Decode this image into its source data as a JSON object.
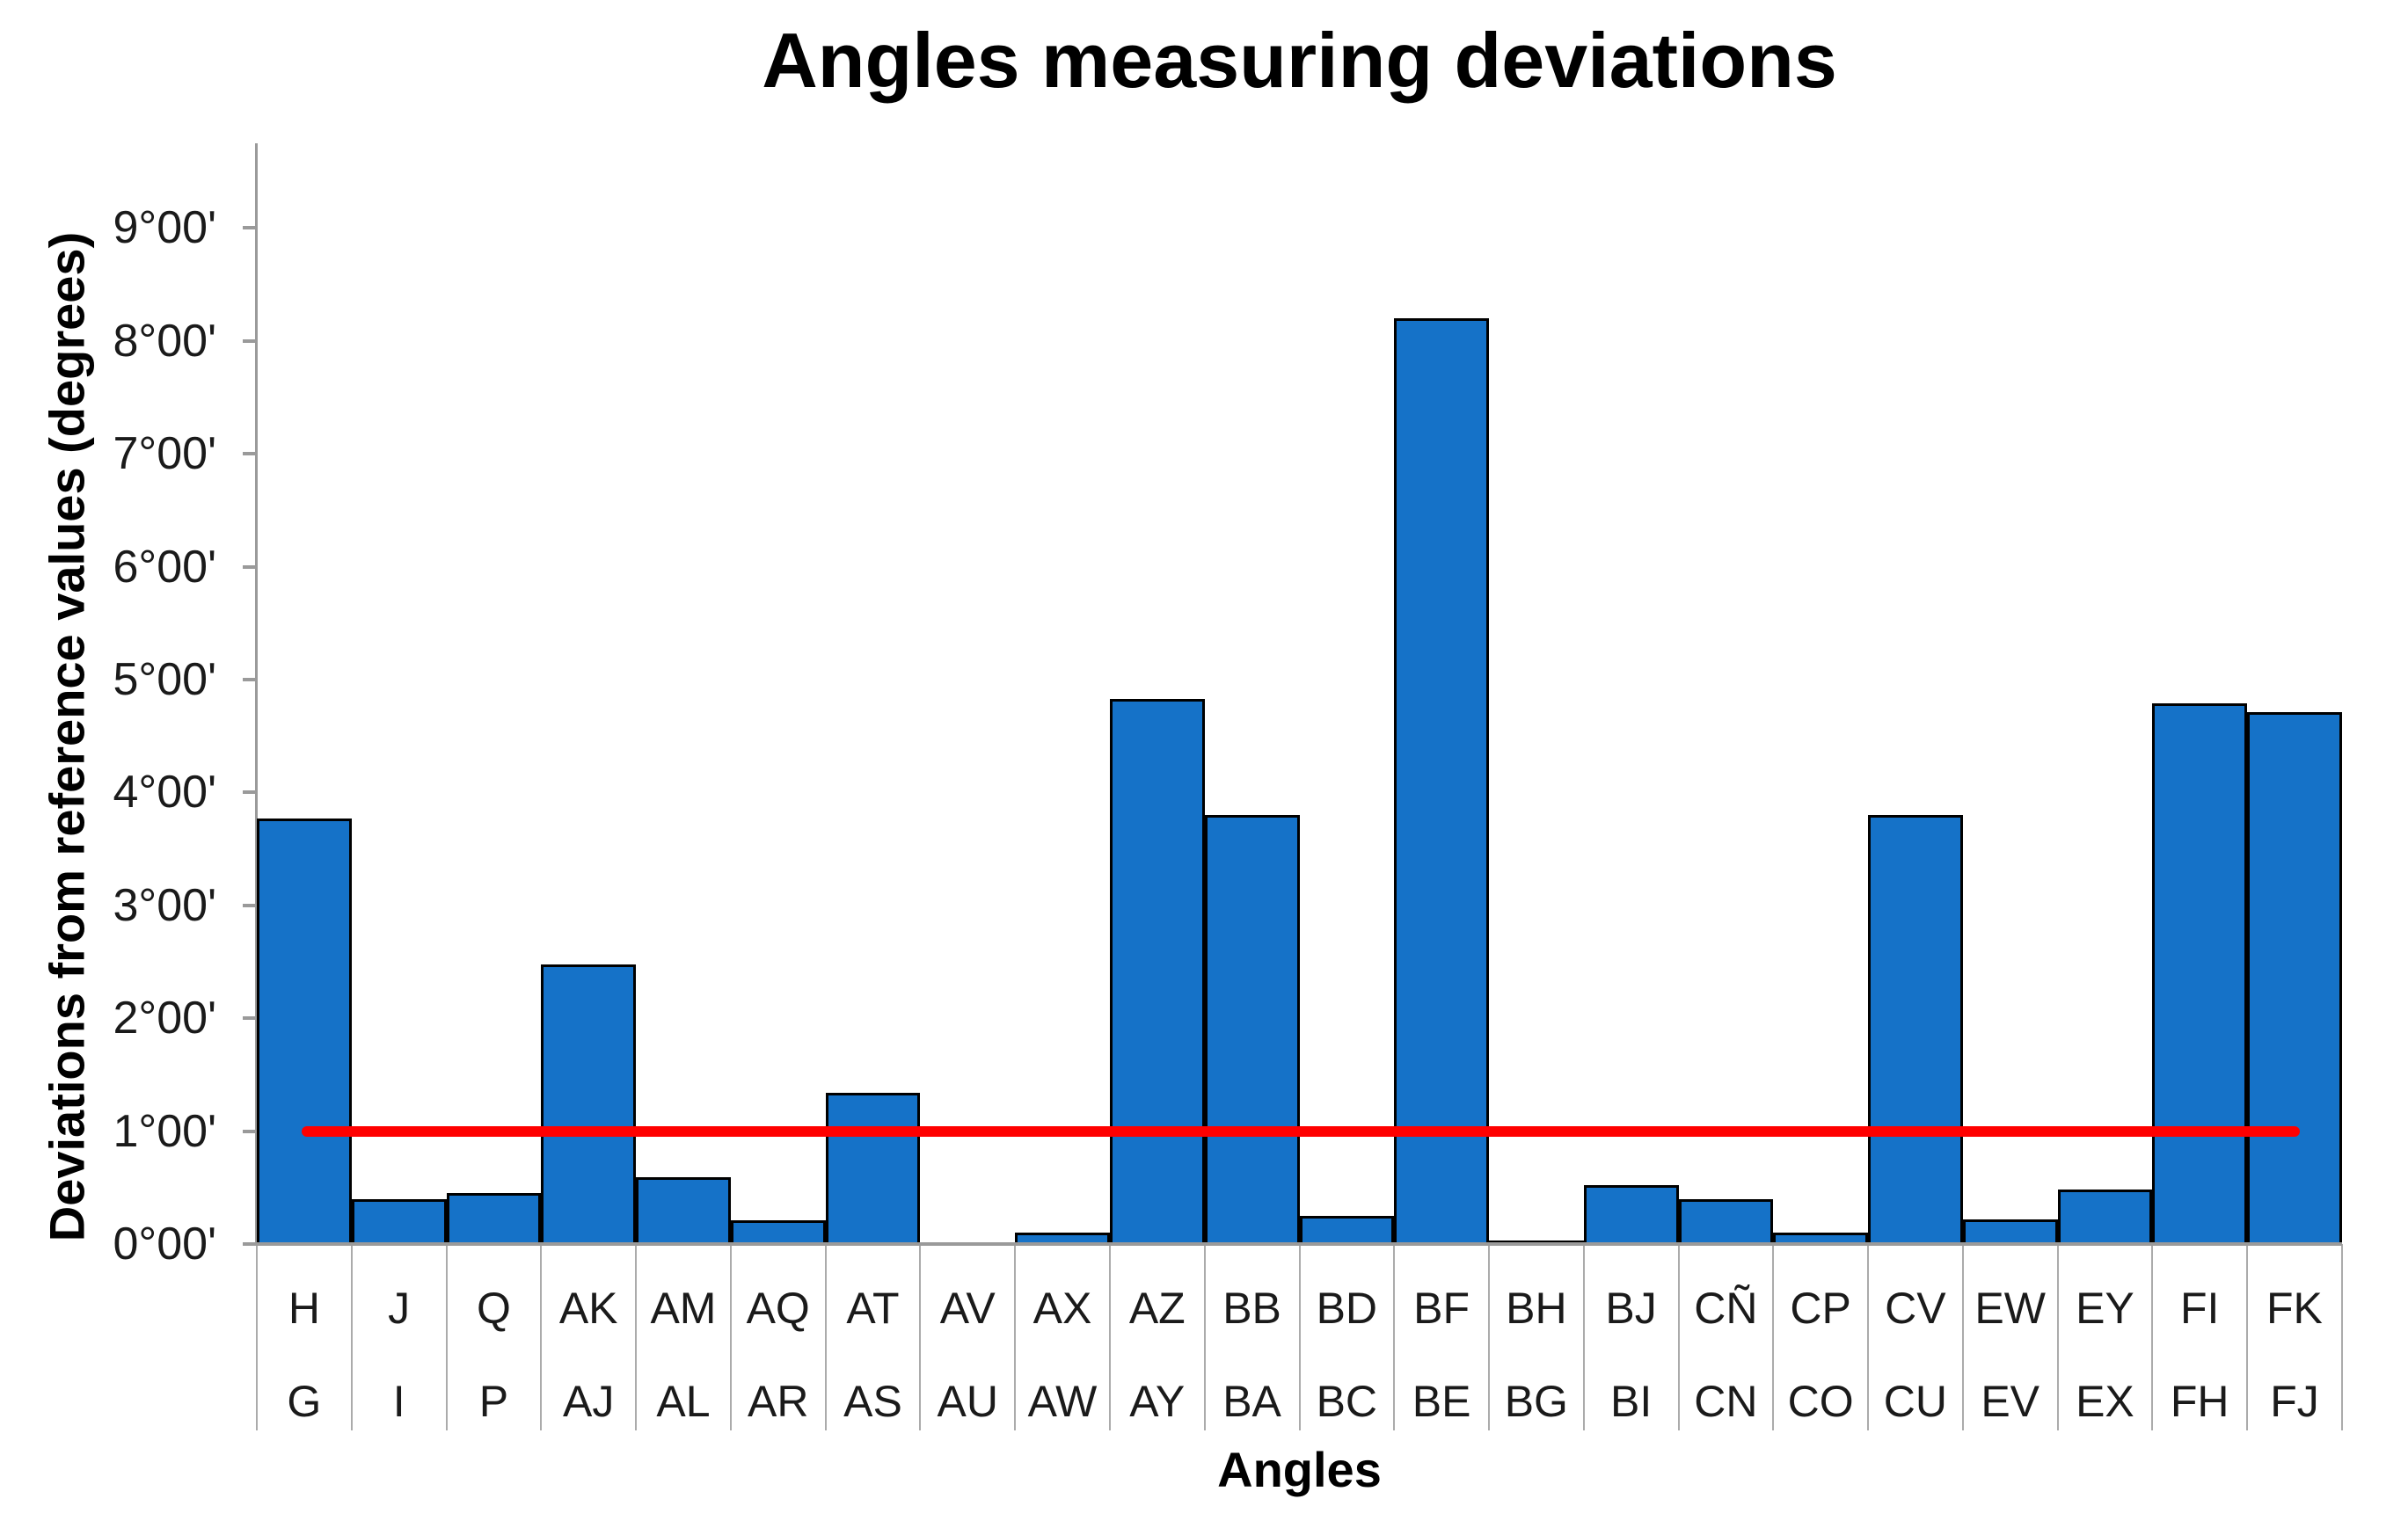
{
  "page": {
    "background": "#FFFFFF"
  },
  "chart_data": {
    "type": "bar",
    "title": "Angles measuring deviations",
    "xlabel": "Angles",
    "ylabel": "Deviations from reference values (degrees)",
    "ylim_degrees": [
      0,
      9.75
    ],
    "ytick_step_degrees": 1,
    "ytick_labels": [
      "0°00'",
      "1°00'",
      "2°00'",
      "3°00'",
      "4°00'",
      "5°00'",
      "6°00'",
      "7°00'",
      "8°00'",
      "9°00'"
    ],
    "grid": false,
    "legend": false,
    "bar_fill_color": "#1572C8",
    "bar_border_color": "#000000",
    "axis_line_color": "#9A9A9A",
    "separator_line_color": "#ABABAB",
    "text_color": "#1A1A1A",
    "reference_line": {
      "value_degrees": 1.0,
      "color": "#FF0000"
    },
    "categories": [
      {
        "top": "H",
        "bottom": "G"
      },
      {
        "top": "J",
        "bottom": "I"
      },
      {
        "top": "Q",
        "bottom": "P"
      },
      {
        "top": "AK",
        "bottom": "AJ"
      },
      {
        "top": "AM",
        "bottom": "AL"
      },
      {
        "top": "AQ",
        "bottom": "AR"
      },
      {
        "top": "AT",
        "bottom": "AS"
      },
      {
        "top": "AV",
        "bottom": "AU"
      },
      {
        "top": "AX",
        "bottom": "AW"
      },
      {
        "top": "AZ",
        "bottom": "AY"
      },
      {
        "top": "BB",
        "bottom": "BA"
      },
      {
        "top": "BD",
        "bottom": "BC"
      },
      {
        "top": "BF",
        "bottom": "BE"
      },
      {
        "top": "BH",
        "bottom": "BG"
      },
      {
        "top": "BJ",
        "bottom": "BI"
      },
      {
        "top": "CÑ",
        "bottom": "CN"
      },
      {
        "top": "CP",
        "bottom": "CO"
      },
      {
        "top": "CV",
        "bottom": "CU"
      },
      {
        "top": "EW",
        "bottom": "EV"
      },
      {
        "top": "EY",
        "bottom": "EX"
      },
      {
        "top": "FI",
        "bottom": "FH"
      },
      {
        "top": "FK",
        "bottom": "FJ"
      }
    ],
    "values_degrees": [
      3.77,
      0.4,
      0.45,
      2.48,
      0.59,
      0.21,
      1.34,
      0,
      0.1,
      4.83,
      3.8,
      0.25,
      8.2,
      0.03,
      0.52,
      0.4,
      0.1,
      3.8,
      0.22,
      0.48,
      4.79,
      4.71
    ]
  }
}
